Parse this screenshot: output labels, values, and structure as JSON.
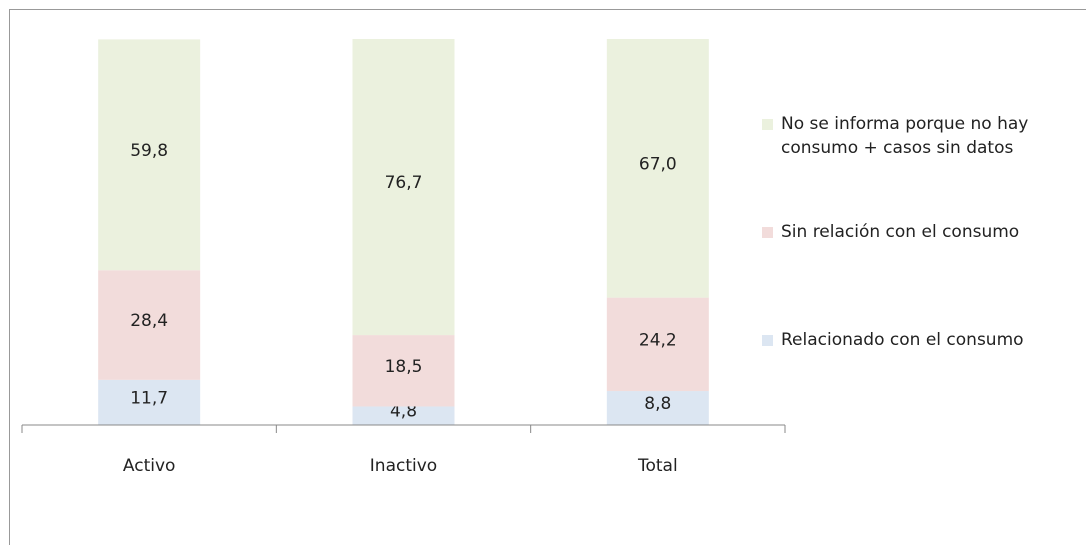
{
  "chart_data": {
    "type": "stacked-bar",
    "categories": [
      "Activo",
      "Inactivo",
      "Total"
    ],
    "ylim": [
      0,
      100
    ],
    "series": [
      {
        "name": "Relacionado con el consumo",
        "color": "#dce6f2",
        "values": [
          11.7,
          4.8,
          8.8
        ],
        "value_labels": [
          "11,7",
          "4,8",
          "8,8"
        ]
      },
      {
        "name": "Sin relación con el consumo",
        "color": "#f2dcdb",
        "values": [
          28.4,
          18.5,
          24.2
        ],
        "value_labels": [
          "28,4",
          "18,5",
          "24,2"
        ]
      },
      {
        "name": "No se informa porque no hay consumo + casos sin datos",
        "color": "#ebf1de",
        "values": [
          59.8,
          76.7,
          67.0
        ],
        "value_labels": [
          "59,8",
          "76,7",
          "67,0"
        ]
      }
    ]
  }
}
